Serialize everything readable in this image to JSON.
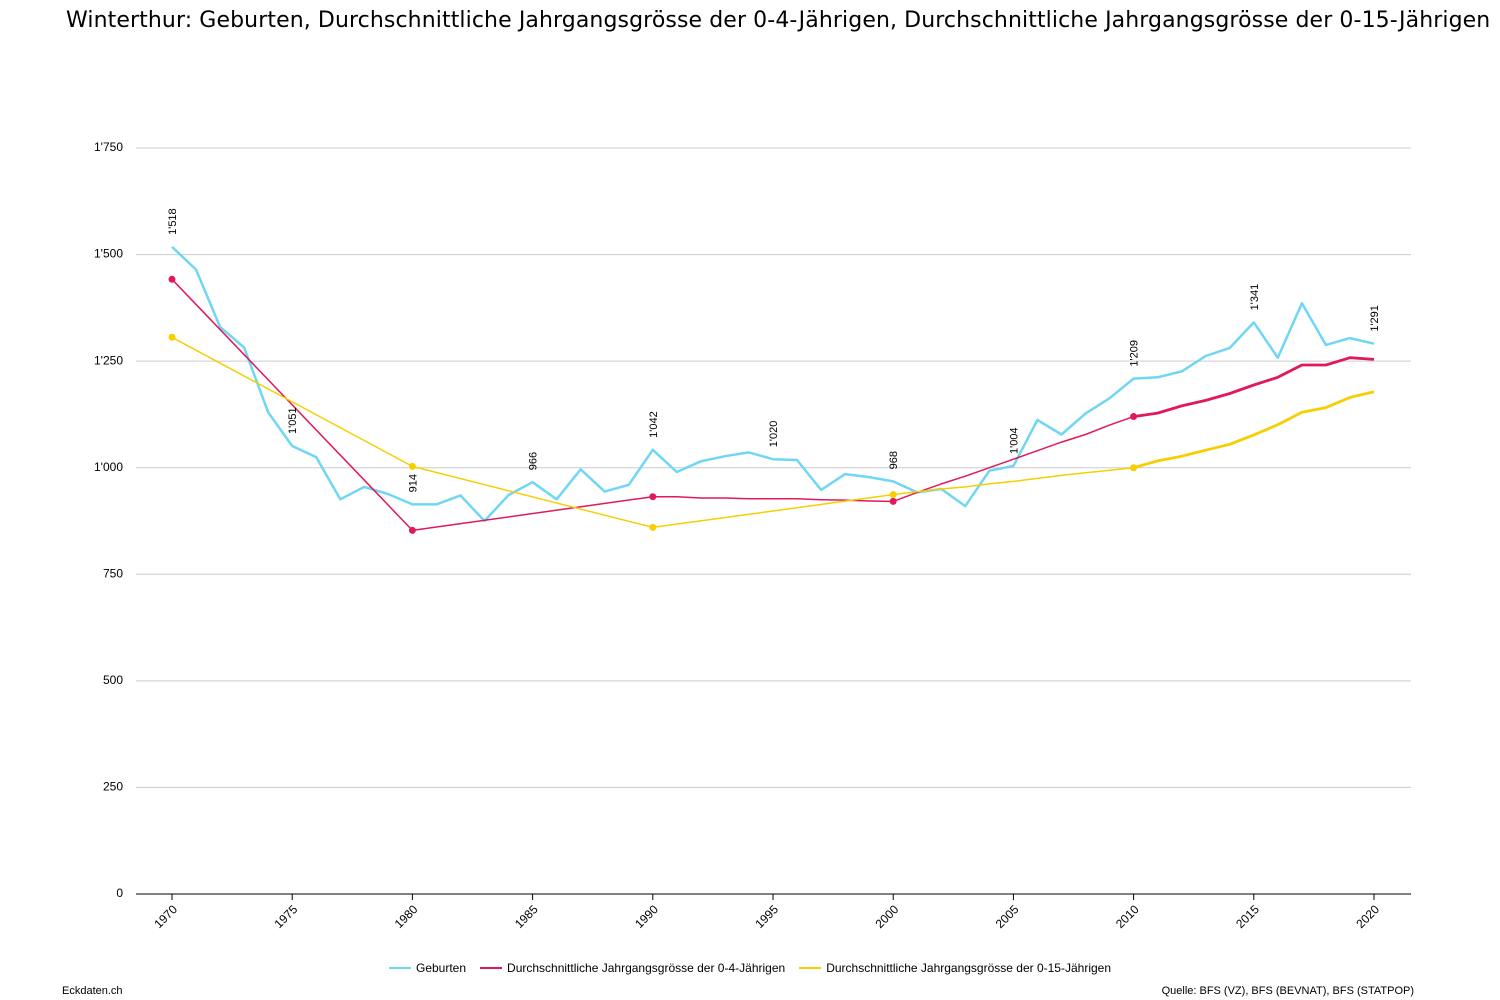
{
  "title": "Winterthur: Geburten, Durchschnittliche Jahrgangsgrösse der 0-4-Jährigen, Durchschnittliche Jahrgangsgrösse der 0-15-Jährigen",
  "footer": {
    "left": "Eckdaten.ch",
    "right": "Quelle: BFS (VZ), BFS (BEVNAT), BFS (STATPOP)"
  },
  "chart_data": {
    "type": "line",
    "title": "Winterthur: Geburten, Durchschnittliche Jahrgangsgrösse der 0-4-Jährigen, Durchschnittliche Jahrgangsgrösse der 0-15-Jährigen",
    "xlabel": "",
    "ylabel": "",
    "xlim": [
      1970,
      2020
    ],
    "ylim": [
      0,
      1750
    ],
    "y_ticks": [
      0,
      250,
      500,
      750,
      1000,
      1250,
      1500,
      1750
    ],
    "y_tick_labels": [
      "0",
      "250",
      "500",
      "750",
      "1'000",
      "1'250",
      "1'500",
      "1'750"
    ],
    "x_ticks": [
      1970,
      1975,
      1980,
      1985,
      1990,
      1995,
      2000,
      2005,
      2010,
      2015,
      2020
    ],
    "x_tick_labels": [
      "1970",
      "1975",
      "1980",
      "1985",
      "1990",
      "1995",
      "2000",
      "2005",
      "2010",
      "2015",
      "2020"
    ],
    "grid": "horizontal",
    "legend_position": "bottom",
    "series": [
      {
        "name": "Geburten",
        "color": "#6fd6f4",
        "x": [
          1970,
          1971,
          1972,
          1973,
          1974,
          1975,
          1976,
          1977,
          1978,
          1979,
          1980,
          1981,
          1982,
          1983,
          1984,
          1985,
          1986,
          1987,
          1988,
          1989,
          1990,
          1991,
          1992,
          1993,
          1994,
          1995,
          1996,
          1997,
          1998,
          1999,
          2000,
          2001,
          2002,
          2003,
          2004,
          2005,
          2006,
          2007,
          2008,
          2009,
          2010,
          2011,
          2012,
          2013,
          2014,
          2015,
          2016,
          2017,
          2018,
          2019,
          2020
        ],
        "values": [
          1518,
          1465,
          1330,
          1282,
          1130,
          1051,
          1025,
          926,
          955,
          938,
          914,
          914,
          935,
          875,
          936,
          966,
          926,
          996,
          944,
          960,
          1042,
          990,
          1015,
          1027,
          1036,
          1020,
          1018,
          948,
          985,
          978,
          968,
          942,
          950,
          910,
          993,
          1004,
          1112,
          1078,
          1127,
          1163,
          1209,
          1212,
          1226,
          1262,
          1281,
          1341,
          1258,
          1386,
          1288,
          1304,
          1291
        ],
        "data_labels": [
          {
            "x": 1970,
            "label": "1'518"
          },
          {
            "x": 1975,
            "label": "1'051"
          },
          {
            "x": 1980,
            "label": "914"
          },
          {
            "x": 1985,
            "label": "966"
          },
          {
            "x": 1990,
            "label": "1'042"
          },
          {
            "x": 1995,
            "label": "1'020"
          },
          {
            "x": 2000,
            "label": "968"
          },
          {
            "x": 2005,
            "label": "1'004"
          },
          {
            "x": 2010,
            "label": "1'209"
          },
          {
            "x": 2015,
            "label": "1'341"
          },
          {
            "x": 2020,
            "label": "1'291"
          }
        ]
      },
      {
        "name": "Durchschnittliche Jahrgangsgrösse der 0-4-Jährigen",
        "color": "#e0195a",
        "x": [
          1970,
          1980,
          1990,
          1991,
          1992,
          1993,
          1994,
          1995,
          1996,
          1997,
          1998,
          1999,
          2000,
          2001,
          2002,
          2003,
          2004,
          2005,
          2006,
          2007,
          2008,
          2009,
          2010,
          2011,
          2012,
          2013,
          2014,
          2015,
          2016,
          2017,
          2018,
          2019,
          2020
        ],
        "values": [
          1442,
          853,
          932,
          932,
          929,
          929,
          927,
          927,
          927,
          925,
          924,
          922,
          921,
          942,
          962,
          980,
          1000,
          1020,
          1040,
          1060,
          1078,
          1100,
          1120,
          1128,
          1145,
          1158,
          1174,
          1194,
          1212,
          1241,
          1241,
          1258,
          1254
        ],
        "markers_at": [
          1970,
          1980,
          1990,
          2000,
          2010
        ]
      },
      {
        "name": "Durchschnittliche Jahrgangsgrösse der 0-15-Jährigen",
        "color": "#f7cf00",
        "x": [
          1970,
          1980,
          1990,
          2000,
          2001,
          2002,
          2003,
          2004,
          2005,
          2006,
          2007,
          2008,
          2009,
          2010,
          2011,
          2012,
          2013,
          2014,
          2015,
          2016,
          2017,
          2018,
          2019,
          2020
        ],
        "values": [
          1306,
          1003,
          860,
          937,
          944,
          950,
          955,
          962,
          968,
          975,
          982,
          988,
          994,
          1000,
          1016,
          1027,
          1041,
          1055,
          1077,
          1101,
          1130,
          1141,
          1165,
          1178
        ],
        "markers_at": [
          1970,
          1980,
          1990,
          2000,
          2010
        ]
      }
    ]
  }
}
